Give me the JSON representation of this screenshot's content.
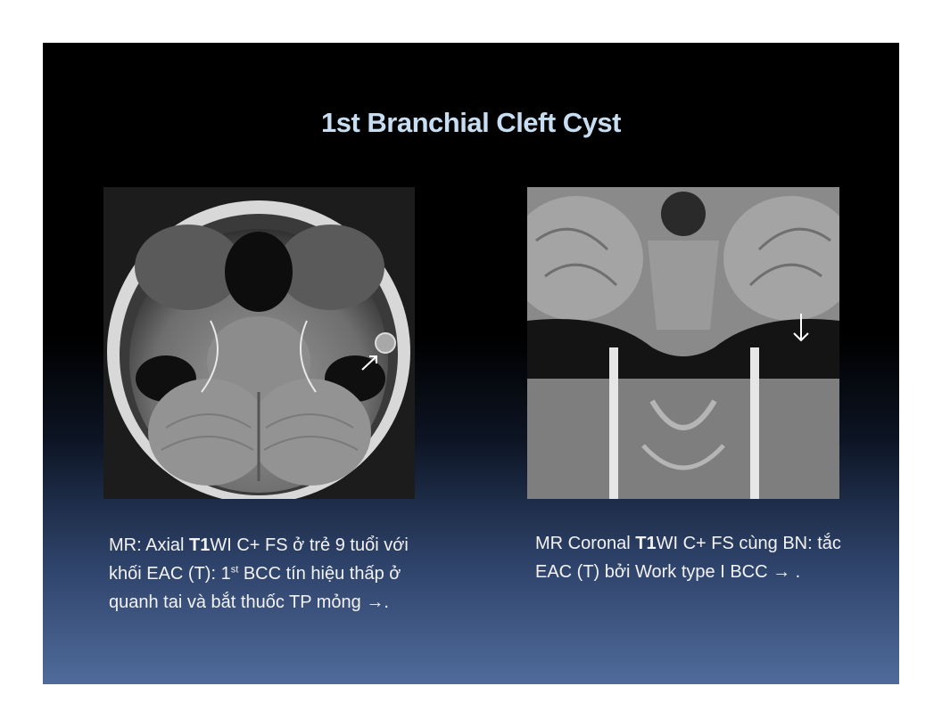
{
  "slide": {
    "title": "1st Branchial Cleft Cyst"
  },
  "images": {
    "left": {
      "icon": "axial-mri-image"
    },
    "right": {
      "icon": "coronal-mri-image"
    }
  },
  "captions": {
    "left": {
      "t1": "MR: Axial ",
      "t2": "T1",
      "t3": "WI C+ FS ở trẻ 9 tuổi với khối EAC (T):  1",
      "t4": "st",
      "t5": " BCC tín hiệu thấp ở quanh tai và bắt thuốc TP mỏng ",
      "t6": "→",
      "t7": "."
    },
    "right": {
      "t1": "MR Coronal ",
      "t2": "T1",
      "t3": "WI C+ FS cùng BN: tắc EAC (T) bởi Work type I BCC ",
      "t4": "→",
      "t5": " ."
    }
  }
}
